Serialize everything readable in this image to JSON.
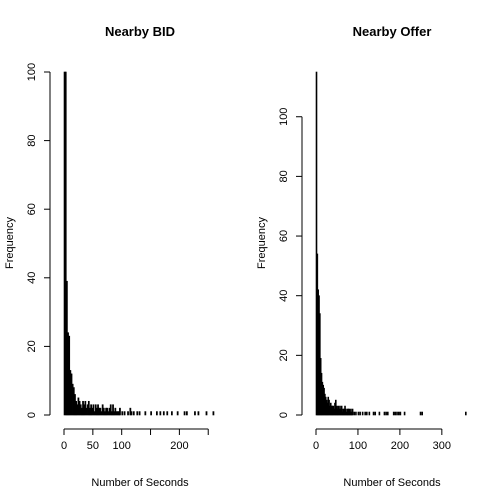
{
  "chart_data": [
    {
      "type": "bar",
      "title": "Nearby BID",
      "xlabel": "Number of Seconds",
      "ylabel": "Frequency",
      "xlim": [
        0,
        260
      ],
      "ylim": [
        0,
        100
      ],
      "x_ticks": [
        0,
        50,
        100,
        150,
        200,
        250
      ],
      "x_tick_labels": [
        "0",
        "50",
        "100",
        "",
        "200",
        ""
      ],
      "y_ticks": [
        0,
        20,
        40,
        60,
        80,
        100
      ],
      "y_tick_labels": [
        "0",
        "20",
        "40",
        "60",
        "80",
        "100"
      ],
      "bin_width": 2,
      "bins": [
        [
          0,
          100
        ],
        [
          2,
          100
        ],
        [
          4,
          39
        ],
        [
          6,
          24
        ],
        [
          8,
          23
        ],
        [
          10,
          13
        ],
        [
          12,
          12
        ],
        [
          14,
          9
        ],
        [
          16,
          8
        ],
        [
          18,
          6
        ],
        [
          20,
          4
        ],
        [
          22,
          3
        ],
        [
          24,
          5
        ],
        [
          26,
          4
        ],
        [
          28,
          3
        ],
        [
          30,
          2
        ],
        [
          32,
          4
        ],
        [
          34,
          3
        ],
        [
          36,
          4
        ],
        [
          38,
          2
        ],
        [
          40,
          3
        ],
        [
          42,
          4
        ],
        [
          44,
          2
        ],
        [
          46,
          3
        ],
        [
          48,
          2
        ],
        [
          50,
          3
        ],
        [
          52,
          1
        ],
        [
          54,
          3
        ],
        [
          56,
          2
        ],
        [
          58,
          3
        ],
        [
          60,
          2
        ],
        [
          62,
          2
        ],
        [
          64,
          1
        ],
        [
          66,
          3
        ],
        [
          68,
          2
        ],
        [
          70,
          1
        ],
        [
          72,
          2
        ],
        [
          74,
          2
        ],
        [
          76,
          1
        ],
        [
          78,
          2
        ],
        [
          80,
          3
        ],
        [
          82,
          1
        ],
        [
          84,
          3
        ],
        [
          86,
          1
        ],
        [
          88,
          2
        ],
        [
          90,
          1
        ],
        [
          92,
          1
        ],
        [
          94,
          1
        ],
        [
          96,
          2
        ],
        [
          100,
          1
        ],
        [
          104,
          1
        ],
        [
          110,
          1
        ],
        [
          114,
          2
        ],
        [
          116,
          1
        ],
        [
          120,
          1
        ],
        [
          126,
          1
        ],
        [
          130,
          1
        ],
        [
          140,
          1
        ],
        [
          150,
          1
        ],
        [
          160,
          1
        ],
        [
          166,
          1
        ],
        [
          172,
          1
        ],
        [
          178,
          1
        ],
        [
          186,
          1
        ],
        [
          196,
          1
        ],
        [
          208,
          1
        ],
        [
          212,
          1
        ],
        [
          226,
          1
        ],
        [
          232,
          1
        ],
        [
          246,
          1
        ],
        [
          258,
          1
        ]
      ]
    },
    {
      "type": "bar",
      "title": "Nearby Offer",
      "xlabel": "Number of Seconds",
      "ylabel": "Frequency",
      "xlim": [
        0,
        360
      ],
      "ylim": [
        0,
        115
      ],
      "x_ticks": [
        0,
        100,
        200,
        300
      ],
      "x_tick_labels": [
        "0",
        "100",
        "200",
        "300"
      ],
      "y_ticks": [
        0,
        20,
        40,
        60,
        80,
        100
      ],
      "y_tick_labels": [
        "0",
        "20",
        "40",
        "60",
        "80",
        "100"
      ],
      "bin_width": 2,
      "bins": [
        [
          0,
          115
        ],
        [
          2,
          54
        ],
        [
          4,
          42
        ],
        [
          6,
          40
        ],
        [
          8,
          34
        ],
        [
          10,
          19
        ],
        [
          12,
          14
        ],
        [
          14,
          11
        ],
        [
          16,
          10
        ],
        [
          18,
          9
        ],
        [
          20,
          7
        ],
        [
          22,
          6
        ],
        [
          24,
          5
        ],
        [
          26,
          4
        ],
        [
          28,
          6
        ],
        [
          30,
          5
        ],
        [
          32,
          3
        ],
        [
          34,
          4
        ],
        [
          36,
          3
        ],
        [
          38,
          3
        ],
        [
          40,
          3
        ],
        [
          42,
          2
        ],
        [
          44,
          4
        ],
        [
          46,
          5
        ],
        [
          48,
          3
        ],
        [
          50,
          2
        ],
        [
          52,
          3
        ],
        [
          54,
          2
        ],
        [
          56,
          3
        ],
        [
          58,
          2
        ],
        [
          60,
          3
        ],
        [
          62,
          1
        ],
        [
          64,
          2
        ],
        [
          66,
          2
        ],
        [
          68,
          3
        ],
        [
          70,
          2
        ],
        [
          72,
          1
        ],
        [
          74,
          2
        ],
        [
          76,
          2
        ],
        [
          78,
          2
        ],
        [
          80,
          1
        ],
        [
          82,
          2
        ],
        [
          84,
          1
        ],
        [
          86,
          2
        ],
        [
          90,
          1
        ],
        [
          94,
          1
        ],
        [
          100,
          1
        ],
        [
          104,
          1
        ],
        [
          110,
          1
        ],
        [
          116,
          1
        ],
        [
          120,
          1
        ],
        [
          126,
          1
        ],
        [
          136,
          1
        ],
        [
          140,
          1
        ],
        [
          150,
          1
        ],
        [
          162,
          1
        ],
        [
          166,
          1
        ],
        [
          170,
          1
        ],
        [
          184,
          1
        ],
        [
          188,
          1
        ],
        [
          192,
          1
        ],
        [
          196,
          1
        ],
        [
          200,
          1
        ],
        [
          210,
          1
        ],
        [
          248,
          1
        ],
        [
          252,
          1
        ],
        [
          356,
          1
        ]
      ]
    }
  ]
}
